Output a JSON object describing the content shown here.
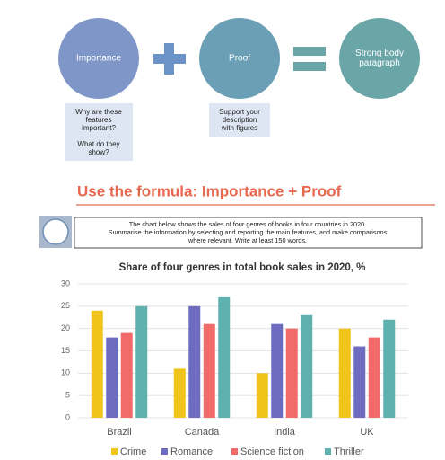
{
  "diagram": {
    "importance": {
      "label": [
        "Importance"
      ],
      "note": [
        [
          "Why are these",
          "features",
          "important?"
        ],
        [
          "What do they",
          "show?"
        ]
      ]
    },
    "proof": {
      "label": [
        "Proof"
      ],
      "note": [
        [
          "Support your",
          "description",
          "with figures"
        ]
      ]
    },
    "result": {
      "label": [
        "Strong body",
        "paragraph"
      ]
    }
  },
  "heading": "Use the formula: Importance + Proof",
  "task": [
    "The chart below shows the sales of four genres of books in four countries in 2020.",
    "Summarise the information by selecting and reporting the main features, and make comparisons",
    "where relevant. Write at least 150 words."
  ],
  "chart_data": {
    "type": "bar",
    "title": "Share of four genres in total book sales in 2020, %",
    "categories": [
      "Brazil",
      "Canada",
      "India",
      "UK"
    ],
    "series": [
      {
        "name": "Crime",
        "color": "#f0c419",
        "values": [
          24,
          11,
          10,
          20
        ]
      },
      {
        "name": "Romance",
        "color": "#6e6cc0",
        "values": [
          18,
          25,
          21,
          16
        ]
      },
      {
        "name": "Science fiction",
        "color": "#f26b6b",
        "values": [
          19,
          21,
          20,
          18
        ]
      },
      {
        "name": "Thriller",
        "color": "#5fb1b0",
        "values": [
          25,
          27,
          23,
          22
        ]
      }
    ],
    "ylim": [
      0,
      30
    ],
    "yticks": [
      0,
      5,
      10,
      15,
      20,
      25,
      30
    ],
    "grid": true,
    "legend": "bottom"
  }
}
